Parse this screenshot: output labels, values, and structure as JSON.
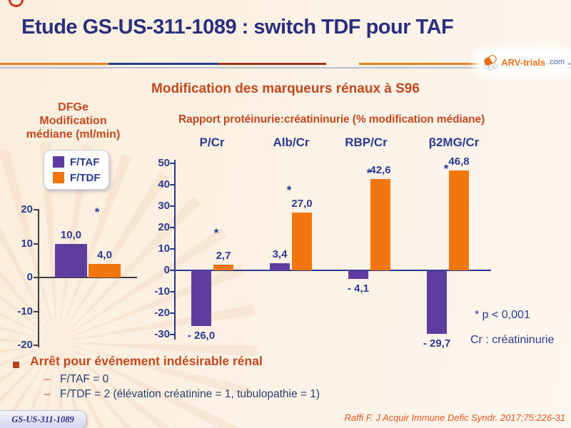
{
  "slide": {
    "title": "Etude GS-US-311-1089 : switch TDF pour TAF",
    "subtitle": "Modification des marqueurs rénaux à S96"
  },
  "logo": {
    "name": "ARV-trials",
    "tld": ".com"
  },
  "colors": {
    "purple": "#5f3d9e",
    "orange": "#f1760e",
    "navy_text": "#2b3a8f",
    "heading_red": "#c2491d",
    "title_navy": "#2a2e7f"
  },
  "chart_data": [
    {
      "id": "dfge",
      "type": "bar",
      "title": "DFGe\nModification\nmédiane (ml/min)",
      "categories": [
        "DFGe"
      ],
      "ylim": [
        -20,
        20
      ],
      "yticks": [
        20,
        10,
        0,
        -10,
        -20
      ],
      "grid": false,
      "legend_position": "top-left",
      "legend": [
        {
          "name": "F/TAF",
          "color": "#5f3d9e"
        },
        {
          "name": "F/TDF",
          "color": "#f1760e"
        }
      ],
      "series": [
        {
          "name": "F/TAF",
          "color": "#5f3d9e",
          "values": [
            10.0
          ],
          "labels": [
            "10,0"
          ]
        },
        {
          "name": "F/TDF",
          "color": "#f1760e",
          "values": [
            4.0
          ],
          "labels": [
            "4,0"
          ]
        }
      ],
      "significance": "*"
    },
    {
      "id": "ratios",
      "type": "bar",
      "title": "Rapport protéinurie:créatininurie (% modification médiane)",
      "categories": [
        "P/Cr",
        "Alb/Cr",
        "RBP/Cr",
        "β2MG/Cr"
      ],
      "ylim": [
        -30,
        50
      ],
      "yticks": [
        50,
        40,
        30,
        20,
        10,
        0,
        -10,
        -20,
        -30
      ],
      "grid": false,
      "series": [
        {
          "name": "F/TAF",
          "color": "#5f3d9e",
          "values": [
            -26.0,
            3.4,
            -4.1,
            -29.7
          ],
          "labels": [
            "- 26,0",
            "3,4",
            "- 4,1",
            "- 29,7"
          ]
        },
        {
          "name": "F/TDF",
          "color": "#f1760e",
          "values": [
            2.7,
            27.0,
            42.6,
            46.8
          ],
          "labels": [
            "2,7",
            "27,0",
            "42,6",
            "46,8"
          ]
        }
      ],
      "significance_per_category": [
        "*",
        "*",
        "*",
        "*"
      ],
      "annotations": [
        "* p < 0,001",
        "Cr : créatininurie"
      ]
    }
  ],
  "bullets": {
    "dash": "–",
    "heading": "Arrêt pour événement indésirable rénal",
    "items": [
      "F/TAF = 0",
      "F/TDF = 2 (élévation créatinine = 1, tubulopathie = 1)"
    ]
  },
  "footer": {
    "badge": "GS-US-311-1089",
    "reference": "Raffi F. J Acquir Immune Defic Syndr. 2017;75:226-31"
  }
}
